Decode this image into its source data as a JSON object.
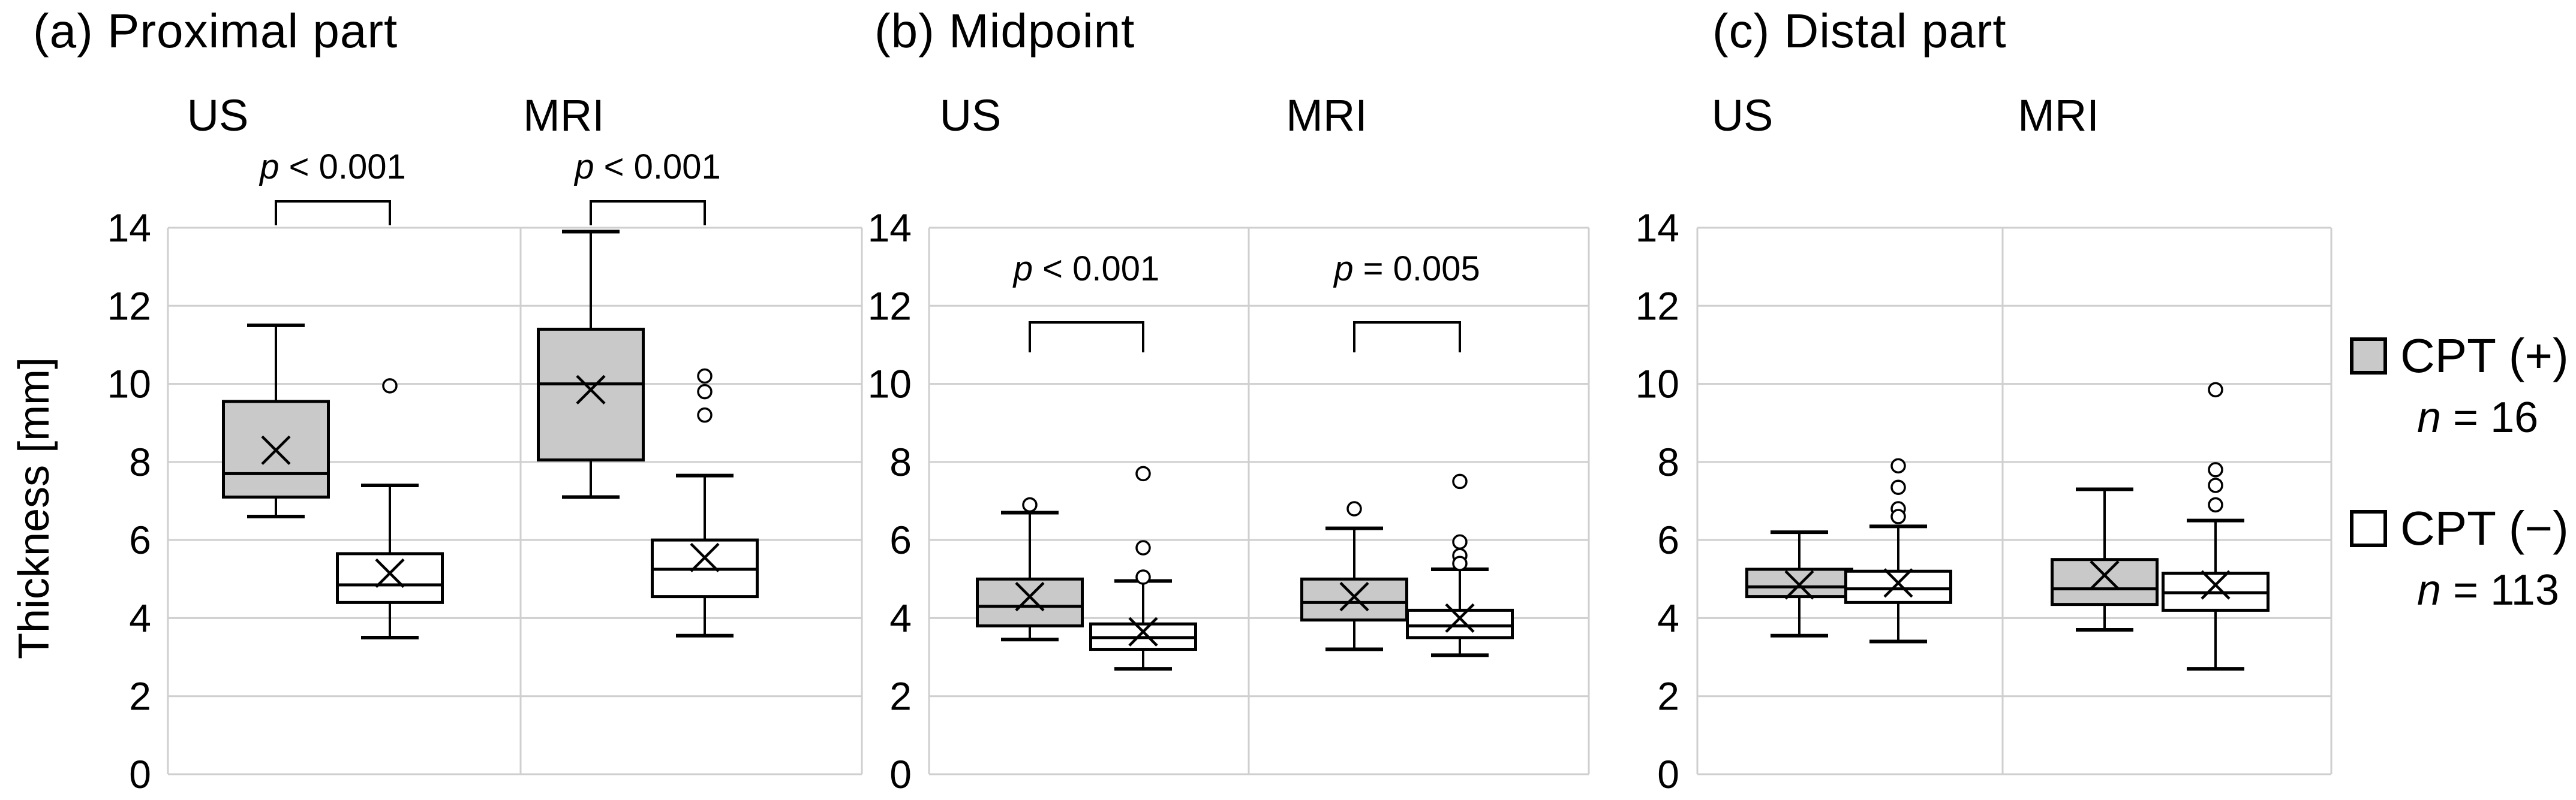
{
  "figure": {
    "y_axis_label": "Thickness [mm]",
    "legend": {
      "position": "right",
      "items": [
        {
          "label": "CPT (+)",
          "count": "n = 16",
          "swatch": "#c9c9c9"
        },
        {
          "label": "CPT (−)",
          "count": "n = 113",
          "swatch": "#ffffff"
        }
      ]
    }
  },
  "chart_data": [
    {
      "type": "box",
      "title": "(a) Proximal part",
      "ylabel": "Thickness [mm]",
      "ylim": [
        0,
        14
      ],
      "yticks": [
        0,
        2,
        4,
        6,
        8,
        10,
        12,
        14
      ],
      "grid": true,
      "p_annotation_placement": "above_plot",
      "groups": [
        {
          "modality": "US",
          "p_annotation": "p < 0.001",
          "boxes": [
            {
              "series": "CPT (+)",
              "fill": "#c9c9c9",
              "whisker_low": 6.6,
              "q1": 7.1,
              "median": 7.7,
              "q3": 9.55,
              "whisker_high": 11.5,
              "mean": 8.3,
              "outliers": []
            },
            {
              "series": "CPT (−)",
              "fill": "#ffffff",
              "whisker_low": 3.5,
              "q1": 4.4,
              "median": 4.85,
              "q3": 5.65,
              "whisker_high": 7.4,
              "mean": 5.15,
              "outliers": [
                9.95
              ]
            }
          ]
        },
        {
          "modality": "MRI",
          "p_annotation": "p < 0.001",
          "boxes": [
            {
              "series": "CPT (+)",
              "fill": "#c9c9c9",
              "whisker_low": 7.1,
              "q1": 8.05,
              "median": 10.0,
              "q3": 11.4,
              "whisker_high": 13.9,
              "mean": 9.85,
              "outliers": []
            },
            {
              "series": "CPT (−)",
              "fill": "#ffffff",
              "whisker_low": 3.55,
              "q1": 4.55,
              "median": 5.25,
              "q3": 6.0,
              "whisker_high": 7.65,
              "mean": 5.55,
              "outliers": [
                10.2,
                9.8,
                9.2
              ]
            }
          ]
        }
      ]
    },
    {
      "type": "box",
      "title": "(b) Midpoint",
      "ylabel": "Thickness [mm]",
      "ylim": [
        0,
        14
      ],
      "yticks": [
        0,
        2,
        4,
        6,
        8,
        10,
        12,
        14
      ],
      "grid": true,
      "p_annotation_placement": "inside_plot",
      "groups": [
        {
          "modality": "US",
          "p_annotation": "p < 0.001",
          "boxes": [
            {
              "series": "CPT (+)",
              "fill": "#c9c9c9",
              "whisker_low": 3.45,
              "q1": 3.8,
              "median": 4.3,
              "q3": 5.0,
              "whisker_high": 6.7,
              "mean": 4.55,
              "outliers": [
                6.9
              ]
            },
            {
              "series": "CPT (−)",
              "fill": "#ffffff",
              "whisker_low": 2.7,
              "q1": 3.2,
              "median": 3.5,
              "q3": 3.85,
              "whisker_high": 4.95,
              "mean": 3.65,
              "outliers": [
                7.7,
                5.8,
                5.05
              ]
            }
          ]
        },
        {
          "modality": "MRI",
          "p_annotation": "p = 0.005",
          "boxes": [
            {
              "series": "CPT (+)",
              "fill": "#c9c9c9",
              "whisker_low": 3.2,
              "q1": 3.95,
              "median": 4.4,
              "q3": 5.0,
              "whisker_high": 6.3,
              "mean": 4.55,
              "outliers": [
                6.8
              ]
            },
            {
              "series": "CPT (−)",
              "fill": "#ffffff",
              "whisker_low": 3.05,
              "q1": 3.5,
              "median": 3.8,
              "q3": 4.2,
              "whisker_high": 5.25,
              "mean": 4.0,
              "outliers": [
                7.5,
                5.95,
                5.6,
                5.4
              ]
            }
          ]
        }
      ]
    },
    {
      "type": "box",
      "title": "(c) Distal part",
      "ylabel": "Thickness [mm]",
      "ylim": [
        0,
        14
      ],
      "yticks": [
        0,
        2,
        4,
        6,
        8,
        10,
        12,
        14
      ],
      "grid": true,
      "p_annotation_placement": "none",
      "groups": [
        {
          "modality": "US",
          "p_annotation": "",
          "boxes": [
            {
              "series": "CPT (+)",
              "fill": "#c9c9c9",
              "whisker_low": 3.55,
              "q1": 4.55,
              "median": 4.8,
              "q3": 5.25,
              "whisker_high": 6.2,
              "mean": 4.85,
              "outliers": []
            },
            {
              "series": "CPT (−)",
              "fill": "#ffffff",
              "whisker_low": 3.4,
              "q1": 4.4,
              "median": 4.75,
              "q3": 5.2,
              "whisker_high": 6.35,
              "mean": 4.9,
              "outliers": [
                7.9,
                7.35,
                6.8,
                6.6
              ]
            }
          ]
        },
        {
          "modality": "MRI",
          "p_annotation": "",
          "boxes": [
            {
              "series": "CPT (+)",
              "fill": "#c9c9c9",
              "whisker_low": 3.7,
              "q1": 4.35,
              "median": 4.75,
              "q3": 5.5,
              "whisker_high": 7.3,
              "mean": 5.1,
              "outliers": []
            },
            {
              "series": "CPT (−)",
              "fill": "#ffffff",
              "whisker_low": 2.7,
              "q1": 4.2,
              "median": 4.65,
              "q3": 5.15,
              "whisker_high": 6.5,
              "mean": 4.85,
              "outliers": [
                9.85,
                7.8,
                7.4,
                6.9
              ]
            }
          ]
        }
      ]
    }
  ]
}
